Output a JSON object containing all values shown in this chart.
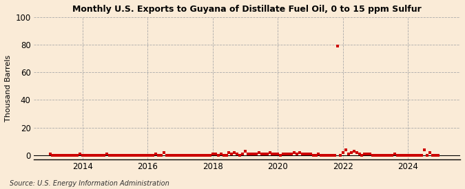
{
  "title": "Monthly U.S. Exports to Guyana of Distillate Fuel Oil, 0 to 15 ppm Sulfur",
  "ylabel": "Thousand Barrels",
  "source": "Source: U.S. Energy Information Administration",
  "background_color": "#faebd7",
  "marker_color": "#cc0000",
  "ylim": [
    -3,
    100
  ],
  "yticks": [
    0,
    20,
    40,
    60,
    80,
    100
  ],
  "xlim_start": 2012.5,
  "xlim_end": 2025.6,
  "xticks": [
    2014,
    2016,
    2018,
    2020,
    2022,
    2024
  ],
  "data_points": [
    [
      2013.0,
      1
    ],
    [
      2013.083,
      0
    ],
    [
      2013.167,
      0
    ],
    [
      2013.25,
      0
    ],
    [
      2013.333,
      0
    ],
    [
      2013.417,
      0
    ],
    [
      2013.5,
      0
    ],
    [
      2013.583,
      0
    ],
    [
      2013.667,
      0
    ],
    [
      2013.75,
      0
    ],
    [
      2013.833,
      0
    ],
    [
      2013.917,
      1
    ],
    [
      2014.0,
      0
    ],
    [
      2014.083,
      0
    ],
    [
      2014.167,
      0
    ],
    [
      2014.25,
      0
    ],
    [
      2014.333,
      0
    ],
    [
      2014.417,
      0
    ],
    [
      2014.5,
      0
    ],
    [
      2014.583,
      0
    ],
    [
      2014.667,
      0
    ],
    [
      2014.75,
      1
    ],
    [
      2014.833,
      0
    ],
    [
      2014.917,
      0
    ],
    [
      2015.0,
      0
    ],
    [
      2015.083,
      0
    ],
    [
      2015.167,
      0
    ],
    [
      2015.25,
      0
    ],
    [
      2015.333,
      0
    ],
    [
      2015.417,
      0
    ],
    [
      2015.5,
      0
    ],
    [
      2015.583,
      0
    ],
    [
      2015.667,
      0
    ],
    [
      2015.75,
      0
    ],
    [
      2015.833,
      0
    ],
    [
      2015.917,
      0
    ],
    [
      2016.0,
      0
    ],
    [
      2016.083,
      0
    ],
    [
      2016.167,
      0
    ],
    [
      2016.25,
      1
    ],
    [
      2016.333,
      0
    ],
    [
      2016.417,
      0
    ],
    [
      2016.5,
      2
    ],
    [
      2016.583,
      0
    ],
    [
      2016.667,
      0
    ],
    [
      2016.75,
      0
    ],
    [
      2016.833,
      0
    ],
    [
      2016.917,
      0
    ],
    [
      2017.0,
      0
    ],
    [
      2017.083,
      0
    ],
    [
      2017.167,
      0
    ],
    [
      2017.25,
      0
    ],
    [
      2017.333,
      0
    ],
    [
      2017.417,
      0
    ],
    [
      2017.5,
      0
    ],
    [
      2017.583,
      0
    ],
    [
      2017.667,
      0
    ],
    [
      2017.75,
      0
    ],
    [
      2017.833,
      0
    ],
    [
      2017.917,
      0
    ],
    [
      2018.0,
      1
    ],
    [
      2018.083,
      1
    ],
    [
      2018.167,
      0
    ],
    [
      2018.25,
      1
    ],
    [
      2018.333,
      0
    ],
    [
      2018.417,
      0
    ],
    [
      2018.5,
      2
    ],
    [
      2018.583,
      1
    ],
    [
      2018.667,
      2
    ],
    [
      2018.75,
      1
    ],
    [
      2018.833,
      0
    ],
    [
      2018.917,
      1
    ],
    [
      2019.0,
      3
    ],
    [
      2019.083,
      1
    ],
    [
      2019.167,
      1
    ],
    [
      2019.25,
      1
    ],
    [
      2019.333,
      1
    ],
    [
      2019.417,
      2
    ],
    [
      2019.5,
      1
    ],
    [
      2019.583,
      1
    ],
    [
      2019.667,
      1
    ],
    [
      2019.75,
      2
    ],
    [
      2019.833,
      1
    ],
    [
      2019.917,
      1
    ],
    [
      2020.0,
      1
    ],
    [
      2020.083,
      0
    ],
    [
      2020.167,
      1
    ],
    [
      2020.25,
      1
    ],
    [
      2020.333,
      1
    ],
    [
      2020.417,
      1
    ],
    [
      2020.5,
      2
    ],
    [
      2020.583,
      1
    ],
    [
      2020.667,
      2
    ],
    [
      2020.75,
      1
    ],
    [
      2020.833,
      1
    ],
    [
      2020.917,
      1
    ],
    [
      2021.0,
      1
    ],
    [
      2021.083,
      0
    ],
    [
      2021.167,
      0
    ],
    [
      2021.25,
      1
    ],
    [
      2021.333,
      0
    ],
    [
      2021.417,
      0
    ],
    [
      2021.5,
      0
    ],
    [
      2021.583,
      0
    ],
    [
      2021.667,
      0
    ],
    [
      2021.75,
      0
    ],
    [
      2021.833,
      79
    ],
    [
      2021.917,
      0
    ],
    [
      2022.0,
      2
    ],
    [
      2022.083,
      4
    ],
    [
      2022.167,
      1
    ],
    [
      2022.25,
      2
    ],
    [
      2022.333,
      3
    ],
    [
      2022.417,
      2
    ],
    [
      2022.5,
      1
    ],
    [
      2022.583,
      0
    ],
    [
      2022.667,
      1
    ],
    [
      2022.75,
      1
    ],
    [
      2022.833,
      1
    ],
    [
      2022.917,
      0
    ],
    [
      2023.0,
      0
    ],
    [
      2023.083,
      0
    ],
    [
      2023.167,
      0
    ],
    [
      2023.25,
      0
    ],
    [
      2023.333,
      0
    ],
    [
      2023.417,
      0
    ],
    [
      2023.5,
      0
    ],
    [
      2023.583,
      1
    ],
    [
      2023.667,
      0
    ],
    [
      2023.75,
      0
    ],
    [
      2023.833,
      0
    ],
    [
      2023.917,
      0
    ],
    [
      2024.0,
      0
    ],
    [
      2024.083,
      0
    ],
    [
      2024.167,
      0
    ],
    [
      2024.25,
      0
    ],
    [
      2024.333,
      0
    ],
    [
      2024.417,
      0
    ],
    [
      2024.5,
      4
    ],
    [
      2024.583,
      0
    ],
    [
      2024.667,
      2
    ],
    [
      2024.75,
      0
    ],
    [
      2024.833,
      0
    ],
    [
      2024.917,
      0
    ]
  ]
}
